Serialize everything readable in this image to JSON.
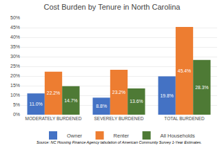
{
  "chart_data": {
    "type": "bar",
    "title": "Cost Burden by Tenure in North Carolina",
    "categories": [
      "MODERATELY BURDENED",
      "SEVERELY BURDENED",
      "TOTAL BURDENED"
    ],
    "series": [
      {
        "name": "Owner",
        "color": "#4472C4",
        "values": [
          11.0,
          8.8,
          19.8
        ],
        "value_labels": [
          "11.0%",
          "8.8%",
          "19.8%"
        ]
      },
      {
        "name": "Renter",
        "color": "#ED7D31",
        "values": [
          22.2,
          23.2,
          45.4
        ],
        "value_labels": [
          "22.2%",
          "23.2%",
          "45.4%"
        ]
      },
      {
        "name": "All Households",
        "color": "#4E7A35",
        "values": [
          14.7,
          13.6,
          28.3
        ],
        "value_labels": [
          "14.7%",
          "13.6%",
          "28.3%"
        ]
      }
    ],
    "ylim": [
      0,
      50
    ],
    "yticks": [
      {
        "value": 0,
        "label": "0%"
      },
      {
        "value": 5,
        "label": "5%"
      },
      {
        "value": 10,
        "label": "10%"
      },
      {
        "value": 15,
        "label": "15%"
      },
      {
        "value": 20,
        "label": "20%"
      },
      {
        "value": 25,
        "label": "25%"
      },
      {
        "value": 30,
        "label": "30%"
      },
      {
        "value": 35,
        "label": "35%"
      },
      {
        "value": 40,
        "label": "40%"
      },
      {
        "value": 45,
        "label": "45%"
      },
      {
        "value": 50,
        "label": "50%"
      }
    ],
    "grid": true,
    "legend": "bottom",
    "data_labels": true,
    "annotations": [
      "Source: NC Housing Finance Agency tabulation of American Community Survey 1-Year Estimates."
    ]
  }
}
